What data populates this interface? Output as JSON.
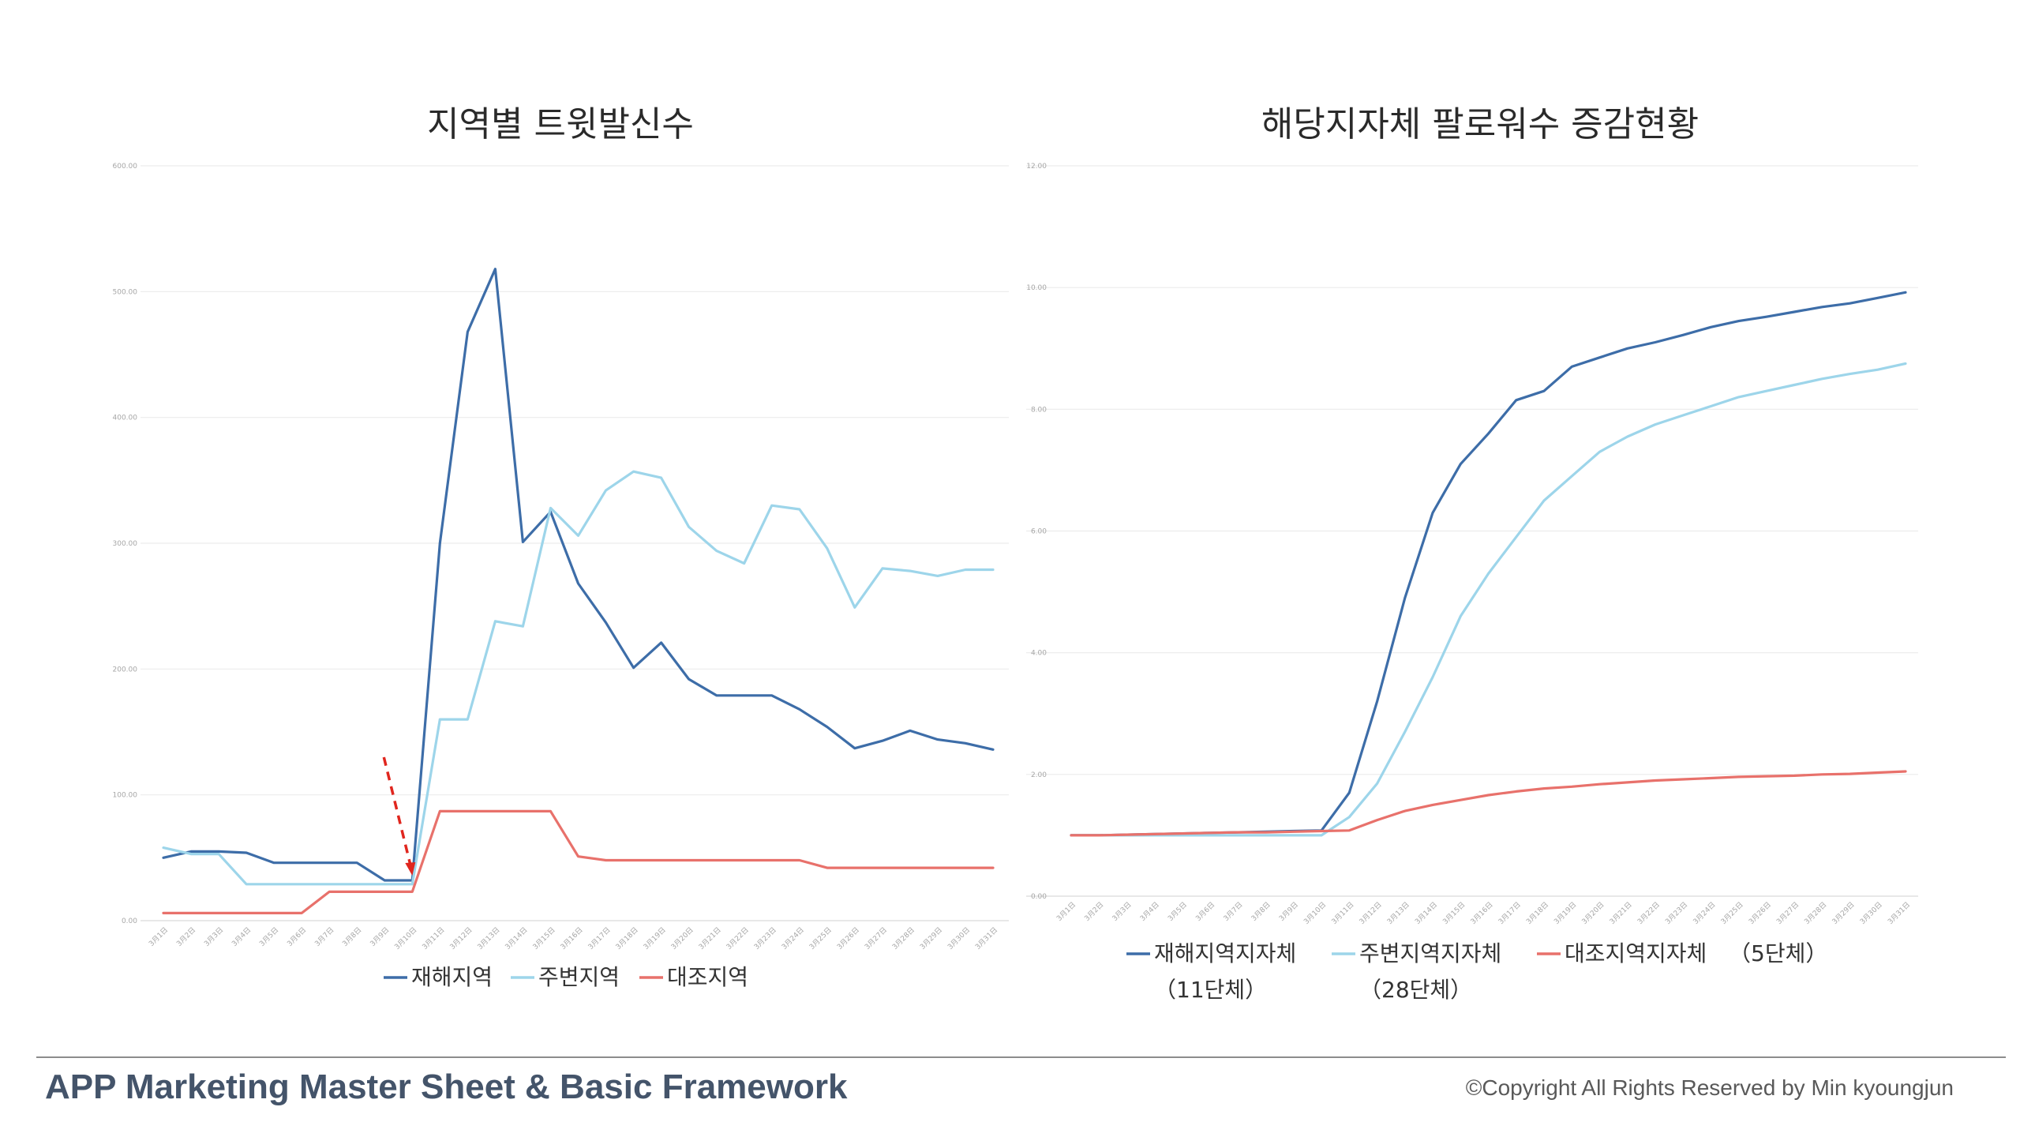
{
  "chart_data": [
    {
      "type": "line",
      "title": "지역별 트윗발신수",
      "xlabel": "",
      "ylabel": "",
      "ylim": [
        0,
        600
      ],
      "yticks": [
        "0.00",
        "100.00",
        "200.00",
        "300.00",
        "400.00",
        "500.00",
        "600.00"
      ],
      "categories": [
        "3月1日",
        "3月2日",
        "3月3日",
        "3月4日",
        "3月5日",
        "3月6日",
        "3月7日",
        "3月8日",
        "3月9日",
        "3月10日",
        "3月11日",
        "3月12日",
        "3月13日",
        "3月14日",
        "3月15日",
        "3月16日",
        "3月17日",
        "3月18日",
        "3月19日",
        "3月20日",
        "3月21日",
        "3月22日",
        "3月23日",
        "3月24日",
        "3月25日",
        "3月26日",
        "3月27日",
        "3月28日",
        "3月29日",
        "3月30日",
        "3月31日"
      ],
      "series": [
        {
          "name": "재해지역",
          "color": "#3d6da8",
          "values": [
            50,
            55,
            55,
            54,
            46,
            46,
            46,
            46,
            32,
            32,
            300,
            468,
            518,
            301,
            325,
            268,
            237,
            201,
            221,
            192,
            179,
            179,
            179,
            168,
            154,
            137,
            143,
            151,
            144,
            141,
            136
          ]
        },
        {
          "name": "주변지역",
          "color": "#9dd5ea",
          "values": [
            58,
            53,
            53,
            29,
            29,
            29,
            29,
            29,
            29,
            29,
            160,
            160,
            238,
            234,
            328,
            306,
            342,
            357,
            352,
            313,
            294,
            284,
            330,
            327,
            296,
            249,
            280,
            278,
            274,
            279,
            279
          ]
        },
        {
          "name": "대조지역",
          "color": "#e8716b",
          "values": [
            6,
            6,
            6,
            6,
            6,
            6,
            23,
            23,
            23,
            23,
            87,
            87,
            87,
            87,
            87,
            51,
            48,
            48,
            48,
            48,
            48,
            48,
            48,
            48,
            42,
            42,
            42,
            42,
            42,
            42,
            42
          ]
        }
      ],
      "legend": "bottom",
      "grid": true,
      "annotation": {
        "type": "dashed-arrow",
        "color": "#e0261e",
        "target_category": "3月10日"
      }
    },
    {
      "type": "line",
      "title": "해당지자체 팔로워수 증감현황",
      "xlabel": "",
      "ylabel": "",
      "ylim": [
        0,
        12
      ],
      "yticks": [
        "0.00",
        "2.00",
        "4.00",
        "6.00",
        "8.00",
        "10.00",
        "12.00"
      ],
      "categories": [
        "3月1日",
        "3月2日",
        "3月3日",
        "3月4日",
        "3月5日",
        "3月6日",
        "3月7日",
        "3月8日",
        "3月9日",
        "3月10日",
        "3月11日",
        "3月12日",
        "3月13日",
        "3月14日",
        "3月15日",
        "3月16日",
        "3月17日",
        "3月18日",
        "3月19日",
        "3月20日",
        "3月21日",
        "3月22日",
        "3月23日",
        "3月24日",
        "3月25日",
        "3月26日",
        "3月27日",
        "3月28日",
        "3月29日",
        "3月30日",
        "3月31日"
      ],
      "series": [
        {
          "name": "재해지역지자체",
          "sublabel": "（11단체）",
          "color": "#3d6da8",
          "values": [
            1.0,
            1.0,
            1.01,
            1.02,
            1.03,
            1.04,
            1.05,
            1.06,
            1.07,
            1.08,
            1.7,
            3.2,
            4.9,
            6.3,
            7.1,
            7.6,
            8.15,
            8.3,
            8.7,
            8.85,
            9.0,
            9.1,
            9.22,
            9.35,
            9.45,
            9.52,
            9.6,
            9.68,
            9.74,
            9.83,
            9.92
          ]
        },
        {
          "name": "주변지역지자체",
          "sublabel": "（28단체）",
          "color": "#9dd5ea",
          "values": [
            1.0,
            1.0,
            1.0,
            1.0,
            1.0,
            1.0,
            1.0,
            1.0,
            1.0,
            1.0,
            1.3,
            1.85,
            2.7,
            3.6,
            4.6,
            5.3,
            5.9,
            6.5,
            6.9,
            7.3,
            7.55,
            7.75,
            7.9,
            8.05,
            8.2,
            8.3,
            8.4,
            8.5,
            8.58,
            8.65,
            8.75
          ]
        },
        {
          "name": "대조지역지자체",
          "sublabel": "（5단체）",
          "color": "#e8716b",
          "values": [
            1.0,
            1.0,
            1.01,
            1.02,
            1.03,
            1.04,
            1.05,
            1.05,
            1.06,
            1.07,
            1.08,
            1.25,
            1.4,
            1.5,
            1.58,
            1.66,
            1.72,
            1.77,
            1.8,
            1.84,
            1.87,
            1.9,
            1.92,
            1.94,
            1.96,
            1.97,
            1.98,
            2.0,
            2.01,
            2.03,
            2.05
          ]
        }
      ],
      "legend": "bottom",
      "grid": true
    }
  ],
  "footer": {
    "left": "APP Marketing Master Sheet & Basic Framework",
    "right": "©Copyright All Rights Reserved by Min kyoungjun"
  }
}
